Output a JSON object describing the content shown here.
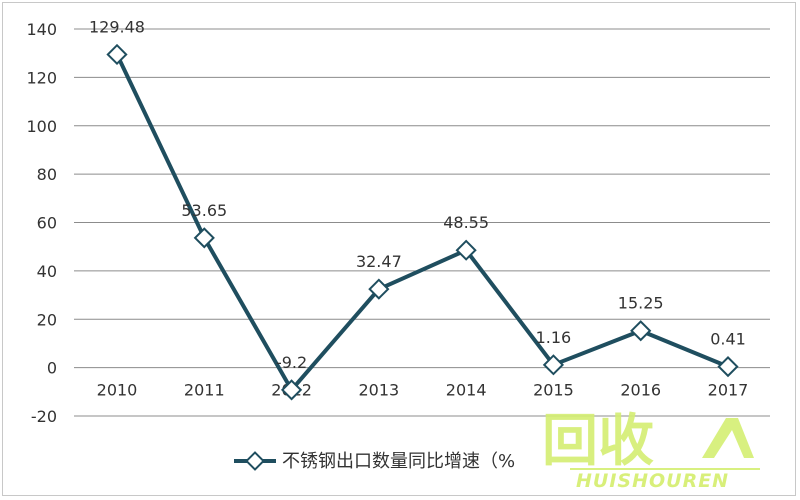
{
  "chart_data": {
    "type": "line",
    "categories": [
      "2010",
      "2011",
      "2012",
      "2013",
      "2014",
      "2015",
      "2016",
      "2017"
    ],
    "series": [
      {
        "name": "不锈钢出口数量同比增速（%）",
        "values": [
          129.48,
          53.65,
          -9.2,
          32.47,
          48.55,
          1.16,
          15.25,
          0.41
        ],
        "data_labels": [
          "129.48",
          "53.65",
          "-9.2",
          "32.47",
          "48.55",
          "1.16",
          "15.25",
          "0.41"
        ],
        "color": "#1f4e5f"
      }
    ],
    "yticks": [
      -20,
      0,
      20,
      40,
      60,
      80,
      100,
      120,
      140
    ],
    "ylim": [
      -20,
      140
    ],
    "title": "",
    "xlabel": "",
    "ylabel": "",
    "grid": true,
    "legend": "bottom",
    "legend_label": "不锈钢出口数量同比增速（%"
  },
  "watermark": {
    "logo_text": "回收",
    "brand_text": "HUISHOUREN",
    "color": "#c8e632"
  }
}
